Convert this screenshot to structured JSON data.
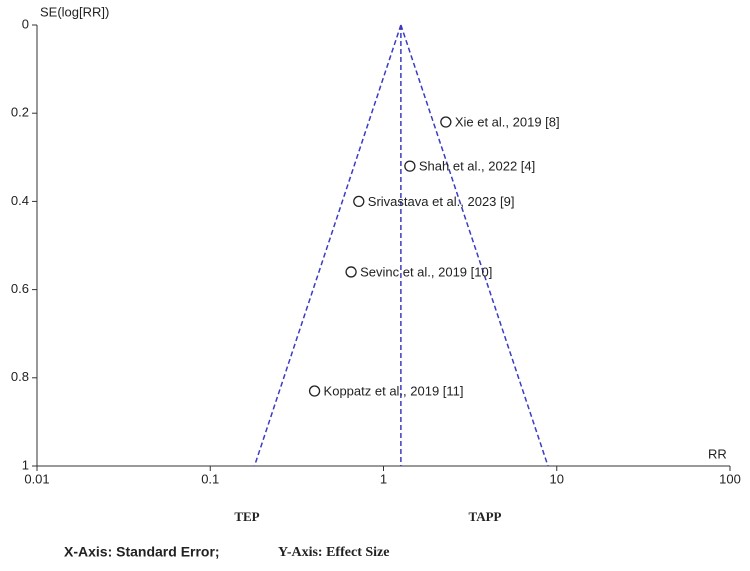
{
  "chart_data": {
    "type": "funnel",
    "y_label": "SE(log[RR])",
    "x_label": "RR",
    "left_annotation": "TEP",
    "right_annotation": "TAPP",
    "caption_x": "X-Axis: Standard Error;",
    "caption_y": "Y-Axis: Effect Size",
    "labels": [
      "Xie et al., 2019 [8]",
      "Shah et al., 2022 [4]",
      "Srivastava et al., 2023 [9]",
      "Sevinc et al., 2019 [10]",
      "Koppatz et al., 2019 [11]"
    ],
    "x": [
      2.29,
      1.42,
      0.72,
      0.65,
      0.4
    ],
    "values": [
      0.22,
      0.32,
      0.4,
      0.56,
      0.83
    ],
    "funnel": {
      "center": 1.26,
      "lower": 0.18,
      "upper": 8.9,
      "color": "#3b3bc4"
    },
    "xlim": [
      0.01,
      100
    ],
    "xticks": [
      0.01,
      0.1,
      1,
      10,
      100
    ],
    "xscale": "log",
    "ylim": [
      0,
      1
    ],
    "yticks": [
      0,
      0.2,
      0.4,
      0.6,
      0.8,
      1
    ],
    "y_inverted": true
  }
}
